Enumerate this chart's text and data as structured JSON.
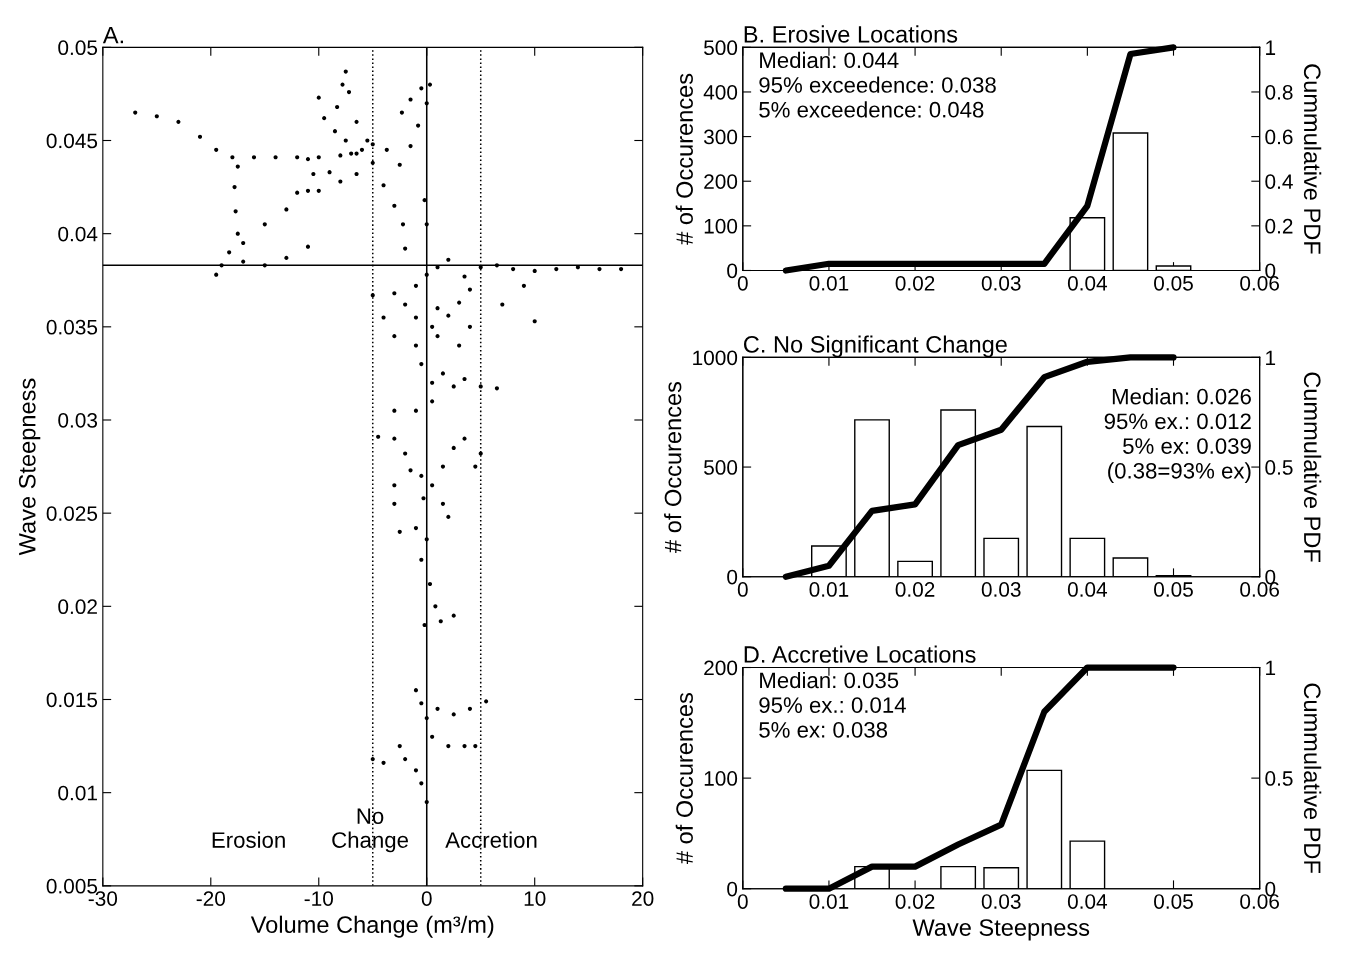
{
  "chart_data": [
    {
      "type": "scatter",
      "title": "A.",
      "xlabel": "Volume Change (m³/m)",
      "ylabel": "Wave Steepness",
      "xlim": [
        -30,
        20
      ],
      "xticks": [
        -30,
        -20,
        -10,
        0,
        10,
        20
      ],
      "ylim": [
        0.005,
        0.05
      ],
      "yticks": [
        0.005,
        0.01,
        0.015,
        0.02,
        0.025,
        0.03,
        0.035,
        0.04,
        0.045,
        0.05
      ],
      "marker": "circle",
      "ref_lines": [
        {
          "axis": "y",
          "value": 0.0383,
          "color": "#000000",
          "line_style": "solid"
        },
        {
          "axis": "x",
          "value": 0,
          "color": "#000000",
          "line_style": "solid"
        },
        {
          "axis": "x",
          "value": -5,
          "color": "#000000",
          "line_style": "dotted"
        },
        {
          "axis": "x",
          "value": 5,
          "color": "#000000",
          "line_style": "dotted"
        }
      ],
      "annotations": [
        "Erosion",
        "No\nChange",
        "Accretion"
      ],
      "series": [
        {
          "color": "#000000",
          "x": [
            -27,
            -25,
            -23,
            -21,
            -19.5,
            -18,
            -16,
            -14,
            -12,
            -10,
            -8,
            -6.5,
            -7.5,
            -8.5,
            -9.5,
            -10,
            -8.3,
            -7.8,
            -7.5,
            -7.2,
            -6.5,
            -5.5,
            -6,
            -5,
            -6.5,
            -8,
            -10,
            -12,
            -10.5,
            -11,
            -17.5,
            -17.8,
            -17.7,
            -17.5,
            -18.3,
            -19,
            -19.5,
            -17,
            -15,
            -13,
            -11,
            -9,
            -7,
            -5,
            -3.7,
            -17,
            -15,
            -13,
            -11,
            -4,
            -3,
            -2.2,
            -2,
            -2.3,
            -1.5,
            -0.5,
            0.3,
            0,
            -0.8,
            -1.5,
            -2.5,
            -0.2,
            0,
            -5,
            -3,
            -1,
            0,
            1,
            2,
            3.5,
            5,
            6.5,
            8,
            10,
            12,
            14,
            16,
            18,
            9,
            10,
            7,
            4,
            1,
            -1,
            0.5,
            2,
            -2,
            3,
            -4,
            -3,
            -1,
            1,
            3,
            4,
            -0.5,
            0.5,
            1.5,
            2.5,
            3.5,
            5,
            6.5,
            0.5,
            -1,
            -3,
            -4.5,
            -3,
            -2,
            -1.5,
            -3,
            -0.5,
            0.5,
            1.5,
            2.5,
            3.5,
            5,
            4.5,
            -0.3,
            1.5,
            2,
            -3,
            -2.5,
            -1,
            0,
            -0.5,
            0.3,
            0.8,
            1.3,
            2.5,
            -0.2,
            -1,
            -0.5,
            0,
            1,
            2.5,
            4,
            5.5,
            0.5,
            2,
            3.5,
            4.5,
            -2.5,
            -5,
            -4,
            -2,
            -1,
            -0.5,
            0
          ],
          "values": [
            0.0465,
            0.0463,
            0.046,
            0.0452,
            0.0445,
            0.0441,
            0.0441,
            0.0441,
            0.0441,
            0.0441,
            0.0442,
            0.0443,
            0.045,
            0.0455,
            0.0462,
            0.0473,
            0.0468,
            0.048,
            0.0487,
            0.0476,
            0.046,
            0.045,
            0.0445,
            0.0438,
            0.0432,
            0.0428,
            0.0423,
            0.0422,
            0.0432,
            0.044,
            0.0436,
            0.0425,
            0.0412,
            0.04,
            0.039,
            0.0383,
            0.0378,
            0.0395,
            0.0405,
            0.0413,
            0.0423,
            0.0433,
            0.0443,
            0.0448,
            0.0445,
            0.0385,
            0.0383,
            0.0387,
            0.0393,
            0.0426,
            0.0415,
            0.0405,
            0.0392,
            0.0465,
            0.0472,
            0.0478,
            0.048,
            0.047,
            0.0458,
            0.0447,
            0.0437,
            0.0418,
            0.0405,
            0.0367,
            0.0368,
            0.0372,
            0.0378,
            0.0382,
            0.0386,
            0.0377,
            0.0382,
            0.0383,
            0.0381,
            0.038,
            0.0381,
            0.0382,
            0.0381,
            0.0381,
            0.0372,
            0.0353,
            0.0362,
            0.037,
            0.036,
            0.0355,
            0.035,
            0.0356,
            0.0362,
            0.0363,
            0.0355,
            0.0345,
            0.034,
            0.0345,
            0.034,
            0.035,
            0.033,
            0.032,
            0.0325,
            0.0318,
            0.0322,
            0.0318,
            0.0317,
            0.031,
            0.0305,
            0.0305,
            0.0291,
            0.029,
            0.0282,
            0.0273,
            0.0265,
            0.027,
            0.0265,
            0.0275,
            0.0285,
            0.029,
            0.0282,
            0.0275,
            0.0258,
            0.0255,
            0.0248,
            0.0255,
            0.024,
            0.0242,
            0.0236,
            0.0225,
            0.0212,
            0.02,
            0.0192,
            0.0195,
            0.019,
            0.0155,
            0.0148,
            0.014,
            0.0145,
            0.0142,
            0.0145,
            0.0149,
            0.013,
            0.0125,
            0.0125,
            0.0125,
            0.0125,
            0.0118,
            0.0116,
            0.0118,
            0.0112,
            0.0105,
            0.0095
          ]
        }
      ]
    },
    {
      "type": "bar",
      "title": "B. Erosive Locations",
      "ylabel": "# of Occurences",
      "y2label": "Cummulative PDF",
      "xlim": [
        0,
        0.06
      ],
      "xticks": [
        0,
        0.01,
        0.02,
        0.03,
        0.04,
        0.05,
        0.06
      ],
      "ylim": [
        0,
        500
      ],
      "yticks": [
        0,
        100,
        200,
        300,
        400,
        500
      ],
      "y2lim": [
        0,
        1
      ],
      "y2ticks": [
        0,
        0.2,
        0.4,
        0.6,
        0.8,
        1
      ],
      "annotations": [
        "Median: 0.044\n95% exceedence: 0.038\n5% exceedence: 0.048"
      ],
      "series": [
        {
          "type": "bar",
          "color": "#ffffff",
          "x": [
            0.04,
            0.045,
            0.05
          ],
          "values": [
            118,
            308,
            10
          ]
        },
        {
          "type": "line",
          "axis": "y2",
          "color": "#000000",
          "x": [
            0.005,
            0.01,
            0.015,
            0.02,
            0.025,
            0.03,
            0.035,
            0.04,
            0.045,
            0.05
          ],
          "values": [
            0,
            0.03,
            0.03,
            0.03,
            0.03,
            0.03,
            0.03,
            0.29,
            0.97,
            1
          ]
        }
      ]
    },
    {
      "type": "bar",
      "title": "C. No Significant Change",
      "ylabel": "# of Occurences",
      "y2label": "Cummulative PDF",
      "xlim": [
        0,
        0.06
      ],
      "xticks": [
        0,
        0.01,
        0.02,
        0.03,
        0.04,
        0.05,
        0.06
      ],
      "ylim": [
        0,
        1000
      ],
      "yticks": [
        0,
        500,
        1000
      ],
      "y2lim": [
        0,
        1
      ],
      "y2ticks": [
        0,
        0.5,
        1
      ],
      "annotations": [
        "Median: 0.026\n95% ex.: 0.012\n5% ex: 0.039\n(0.38=93% ex)"
      ],
      "series": [
        {
          "type": "bar",
          "color": "#ffffff",
          "x": [
            0.01,
            0.015,
            0.02,
            0.025,
            0.03,
            0.035,
            0.04,
            0.045,
            0.05
          ],
          "values": [
            140,
            715,
            70,
            760,
            175,
            685,
            175,
            85,
            5
          ]
        },
        {
          "type": "line",
          "axis": "y2",
          "color": "#000000",
          "x": [
            0.005,
            0.01,
            0.015,
            0.02,
            0.025,
            0.03,
            0.035,
            0.04,
            0.045,
            0.05
          ],
          "values": [
            0,
            0.05,
            0.3,
            0.33,
            0.6,
            0.67,
            0.91,
            0.98,
            1,
            1
          ]
        }
      ]
    },
    {
      "type": "bar",
      "title": "D. Accretive Locations",
      "xlabel": "Wave Steepness",
      "ylabel": "# of Occurences",
      "y2label": "Cummulative PDF",
      "xlim": [
        0,
        0.06
      ],
      "xticks": [
        0,
        0.01,
        0.02,
        0.03,
        0.04,
        0.05,
        0.06
      ],
      "ylim": [
        0,
        200
      ],
      "yticks": [
        0,
        100,
        200
      ],
      "y2lim": [
        0,
        1
      ],
      "y2ticks": [
        0,
        0.5,
        1
      ],
      "annotations": [
        "Median: 0.035\n95% ex.: 0.014\n5% ex: 0.038"
      ],
      "series": [
        {
          "type": "bar",
          "color": "#ffffff",
          "x": [
            0.015,
            0.025,
            0.03,
            0.035,
            0.04
          ],
          "values": [
            20,
            20,
            19,
            107,
            43
          ]
        },
        {
          "type": "line",
          "axis": "y2",
          "color": "#000000",
          "x": [
            0.005,
            0.01,
            0.015,
            0.02,
            0.025,
            0.03,
            0.035,
            0.04,
            0.045,
            0.05
          ],
          "values": [
            0,
            0,
            0.1,
            0.1,
            0.2,
            0.29,
            0.8,
            1,
            1,
            1
          ]
        }
      ]
    }
  ]
}
